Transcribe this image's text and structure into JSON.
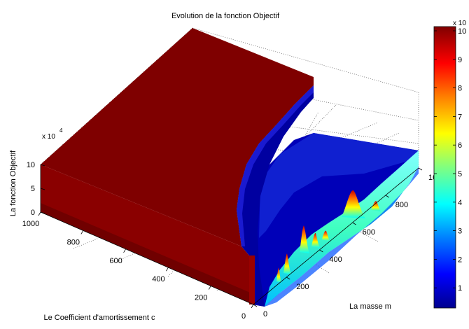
{
  "chart_data": {
    "type": "surface",
    "title": "Evolution de la fonction Objectif",
    "zlabel": "La fonction Objectif",
    "xlabel": "Le Coefficient d'amortissement c",
    "ylabel": "La masse m",
    "z_exponent_label": "x 10",
    "z_exponent": "4",
    "z_ticks": [
      "0",
      "5",
      "10"
    ],
    "c_ticks": [
      "0",
      "200",
      "400",
      "600",
      "800",
      "1000"
    ],
    "m_ticks": [
      "0",
      "200",
      "400",
      "600",
      "800",
      "10"
    ],
    "zlim": [
      0,
      100000
    ],
    "colorbar": {
      "exponent_label": "x 10",
      "ticks": [
        "1",
        "2",
        "3",
        "4",
        "5",
        "6",
        "7",
        "8",
        "9",
        "10"
      ],
      "colormap": "jet",
      "colors": [
        "#00008f",
        "#0000ff",
        "#0080ff",
        "#00ffff",
        "#80ff80",
        "#ffff00",
        "#ff8000",
        "#ff0000",
        "#800000"
      ]
    },
    "regions": [
      {
        "name": "plateau",
        "value": 100000,
        "color": "#7f0000"
      },
      {
        "name": "valley",
        "value": 5000,
        "color": "#00008f"
      }
    ],
    "peaks": [
      {
        "c": 40,
        "m": 120,
        "z": 35000
      },
      {
        "c": 40,
        "m": 600,
        "z": 25000
      }
    ],
    "grid": true
  }
}
